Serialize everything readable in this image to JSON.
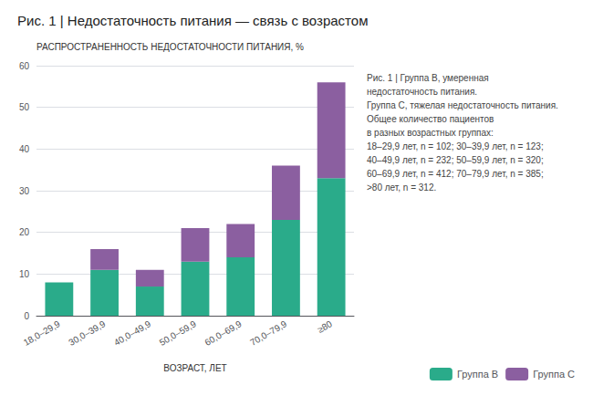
{
  "chart_data": {
    "type": "bar",
    "stacked": true,
    "title": "Рис. 1 | Недостаточность питания — связь с возрастом",
    "ylabel": "РАСПРОСТРАНЕННОСТЬ НЕДОСТАТОЧНОСТИ ПИТАНИЯ, %",
    "xlabel": "ВОЗРАСТ, ЛЕТ",
    "categories": [
      "18,0–29,9",
      "30,0–39,9",
      "40,0–49,9",
      "50,0–59,9",
      "60,0–69,9",
      "70,0–79,9",
      "≥80"
    ],
    "series": [
      {
        "name": "Группа В",
        "color": "#2aab8a",
        "values": [
          8,
          11,
          7,
          13,
          14,
          23,
          33
        ]
      },
      {
        "name": "Группа С",
        "color": "#8b5fa0",
        "values": [
          0,
          5,
          4,
          8,
          8,
          13,
          23
        ]
      }
    ],
    "ylim": [
      0,
      60
    ],
    "yticks": [
      0,
      10,
      20,
      30,
      40,
      50,
      60
    ],
    "grid": true,
    "legend": "lower right",
    "annotations": [
      "Рис. 1 | Группа В, умеренная",
      "недостаточность питания.",
      "Группа С, тяжелая недостаточность питания.",
      "Общее количество пациентов",
      "в разных возрастных группах:",
      "18–29,9 лет, n = 102; 30–39,9 лет, n = 123;",
      "40–49,9 лет, n = 232; 50–59,9 лет, n = 320;",
      "60–69,9 лет, n = 412; 70–79,9 лет, n = 385;",
      ">80 лет, n = 312."
    ]
  }
}
